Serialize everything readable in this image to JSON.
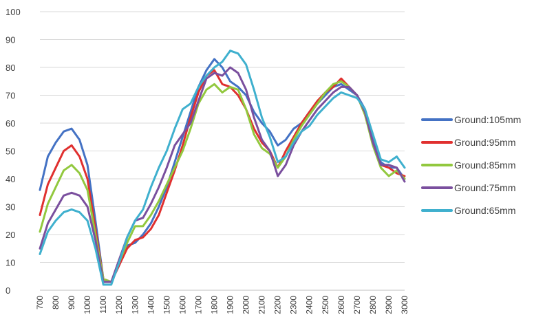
{
  "chart_data": {
    "type": "line",
    "title": "",
    "xlabel": "",
    "ylabel": "",
    "ylim": [
      0,
      100
    ],
    "xlim": [
      700,
      3000
    ],
    "yticks": [
      0,
      10,
      20,
      30,
      40,
      50,
      60,
      70,
      80,
      90,
      100
    ],
    "xticks": [
      "700",
      "800",
      "900",
      "1000",
      "1100",
      "1200",
      "1300",
      "1400",
      "1500",
      "1600",
      "1700",
      "1800",
      "1900",
      "2000",
      "2100",
      "2200",
      "2300",
      "2400",
      "2500",
      "2600",
      "2700",
      "2800",
      "2900",
      "3000"
    ],
    "grid": "horizontal",
    "legend_position": "right",
    "series": [
      {
        "name": "Ground:105mm",
        "color": "#4472C4",
        "x": [
          700,
          750,
          800,
          850,
          900,
          950,
          1000,
          1050,
          1100,
          1150,
          1200,
          1250,
          1300,
          1350,
          1400,
          1450,
          1500,
          1550,
          1600,
          1650,
          1700,
          1750,
          1800,
          1850,
          1900,
          1950,
          2000,
          2050,
          2100,
          2150,
          2200,
          2250,
          2300,
          2350,
          2400,
          2450,
          2500,
          2550,
          2600,
          2650,
          2700,
          2750,
          2800,
          2850,
          2900,
          2950,
          3000
        ],
        "values": [
          36,
          48,
          53,
          57,
          58,
          54,
          45,
          25,
          4,
          3,
          9,
          16,
          17,
          20,
          24,
          30,
          37,
          46,
          55,
          64,
          73,
          79,
          83,
          80,
          75,
          73,
          70,
          64,
          60,
          57,
          52,
          54,
          58,
          60,
          64,
          67,
          70,
          73,
          74,
          72,
          70,
          65,
          55,
          46,
          44,
          44,
          40
        ]
      },
      {
        "name": "Ground:95mm",
        "color": "#E0302F",
        "x": [
          700,
          750,
          800,
          850,
          900,
          950,
          1000,
          1050,
          1100,
          1150,
          1200,
          1250,
          1300,
          1350,
          1400,
          1450,
          1500,
          1550,
          1600,
          1650,
          1700,
          1750,
          1800,
          1850,
          1900,
          1950,
          2000,
          2050,
          2100,
          2150,
          2200,
          2250,
          2300,
          2350,
          2400,
          2450,
          2500,
          2550,
          2600,
          2650,
          2700,
          2750,
          2800,
          2850,
          2900,
          2950,
          3000
        ],
        "values": [
          27,
          38,
          44,
          50,
          52,
          48,
          40,
          22,
          4,
          3,
          9,
          15,
          18,
          19,
          22,
          27,
          35,
          43,
          52,
          62,
          71,
          77,
          79,
          74,
          73,
          70,
          65,
          58,
          53,
          50,
          44,
          50,
          55,
          60,
          64,
          68,
          71,
          73,
          76,
          73,
          70,
          63,
          53,
          45,
          44,
          42,
          41
        ]
      },
      {
        "name": "Ground:85mm",
        "color": "#92C83E",
        "x": [
          700,
          750,
          800,
          850,
          900,
          950,
          1000,
          1050,
          1100,
          1150,
          1200,
          1250,
          1300,
          1350,
          1400,
          1450,
          1500,
          1550,
          1600,
          1650,
          1700,
          1750,
          1800,
          1850,
          1900,
          1950,
          2000,
          2050,
          2100,
          2150,
          2200,
          2250,
          2300,
          2350,
          2400,
          2450,
          2500,
          2550,
          2600,
          2650,
          2700,
          2750,
          2800,
          2850,
          2900,
          2950,
          3000
        ],
        "values": [
          21,
          31,
          37,
          43,
          45,
          42,
          36,
          20,
          4,
          3,
          10,
          17,
          23,
          23,
          27,
          32,
          38,
          44,
          50,
          58,
          67,
          72,
          74,
          71,
          73,
          72,
          65,
          56,
          51,
          49,
          44,
          48,
          54,
          59,
          63,
          67,
          71,
          74,
          75,
          73,
          70,
          63,
          52,
          44,
          41,
          43,
          40
        ]
      },
      {
        "name": "Ground:75mm",
        "color": "#7A4F9E",
        "x": [
          700,
          750,
          800,
          850,
          900,
          950,
          1000,
          1050,
          1100,
          1150,
          1200,
          1250,
          1300,
          1350,
          1400,
          1450,
          1500,
          1550,
          1600,
          1650,
          1700,
          1750,
          1800,
          1850,
          1900,
          1950,
          2000,
          2050,
          2100,
          2150,
          2200,
          2250,
          2300,
          2350,
          2400,
          2450,
          2500,
          2550,
          2600,
          2650,
          2700,
          2750,
          2800,
          2850,
          2900,
          2950,
          3000
        ],
        "values": [
          15,
          24,
          29,
          34,
          35,
          34,
          30,
          18,
          3,
          3,
          11,
          19,
          25,
          26,
          31,
          37,
          44,
          52,
          56,
          60,
          68,
          76,
          78,
          77,
          80,
          78,
          72,
          62,
          54,
          50,
          41,
          45,
          52,
          57,
          61,
          65,
          68,
          71,
          73,
          73,
          70,
          64,
          53,
          45,
          45,
          44,
          39
        ]
      },
      {
        "name": "Ground:65mm",
        "color": "#3FB0CE",
        "x": [
          700,
          750,
          800,
          850,
          900,
          950,
          1000,
          1050,
          1100,
          1150,
          1200,
          1250,
          1300,
          1350,
          1400,
          1450,
          1500,
          1550,
          1600,
          1650,
          1700,
          1750,
          1800,
          1850,
          1900,
          1950,
          2000,
          2050,
          2100,
          2150,
          2200,
          2250,
          2300,
          2350,
          2400,
          2450,
          2500,
          2550,
          2600,
          2650,
          2700,
          2750,
          2800,
          2850,
          2900,
          2950,
          3000
        ],
        "values": [
          13,
          21,
          25,
          28,
          29,
          28,
          25,
          15,
          2,
          2,
          10,
          19,
          25,
          29,
          37,
          44,
          50,
          58,
          65,
          67,
          73,
          77,
          80,
          82,
          86,
          85,
          81,
          72,
          62,
          55,
          46,
          48,
          53,
          57,
          59,
          63,
          66,
          69,
          71,
          70,
          69,
          65,
          56,
          47,
          46,
          48,
          44
        ]
      }
    ]
  }
}
